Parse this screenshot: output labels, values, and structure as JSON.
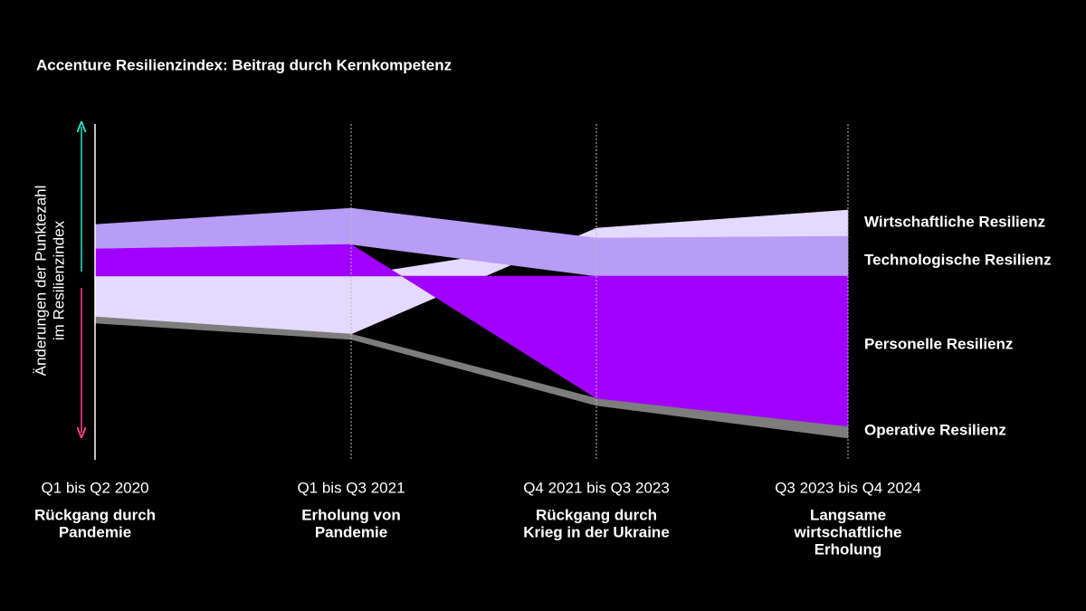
{
  "chart_data": {
    "type": "diverging-area",
    "title": "Accenture Resilienzindex: Beitrag durch Kernkompetenz",
    "y_label": [
      "Änderungen der Punktezahl",
      "im Resilienzindex"
    ],
    "categories": [
      "Q1 bis Q2 2020",
      "Q1 bis Q3 2021",
      "Q4 2021 bis Q3 2023",
      "Q3 2023 bis Q4 2024"
    ],
    "descriptions": [
      [
        "Rückgang durch",
        "Pandemie"
      ],
      [
        "Erholung von",
        "Pandemie"
      ],
      [
        "Rückgang durch",
        "Krieg in der Ukraine"
      ],
      [
        "Langsame",
        "wirtschaftliche",
        "Erholung"
      ]
    ],
    "series": [
      {
        "name": "Personelle Resilienz",
        "color": "#a100ff",
        "values": [
          30,
          35,
          -135,
          -166
        ]
      },
      {
        "name": "Technologische Resilienz",
        "color": "#b89df6",
        "values": [
          27,
          40,
          42,
          44
        ]
      },
      {
        "name": "Wirtschaftliche Resilienz",
        "color": "#e4daff",
        "values": [
          -45,
          -64,
          11,
          29
        ]
      },
      {
        "name": "Operative Resilienz",
        "color": "#7d7d7d",
        "values": [
          -7,
          -6,
          -8,
          -13
        ]
      }
    ]
  }
}
